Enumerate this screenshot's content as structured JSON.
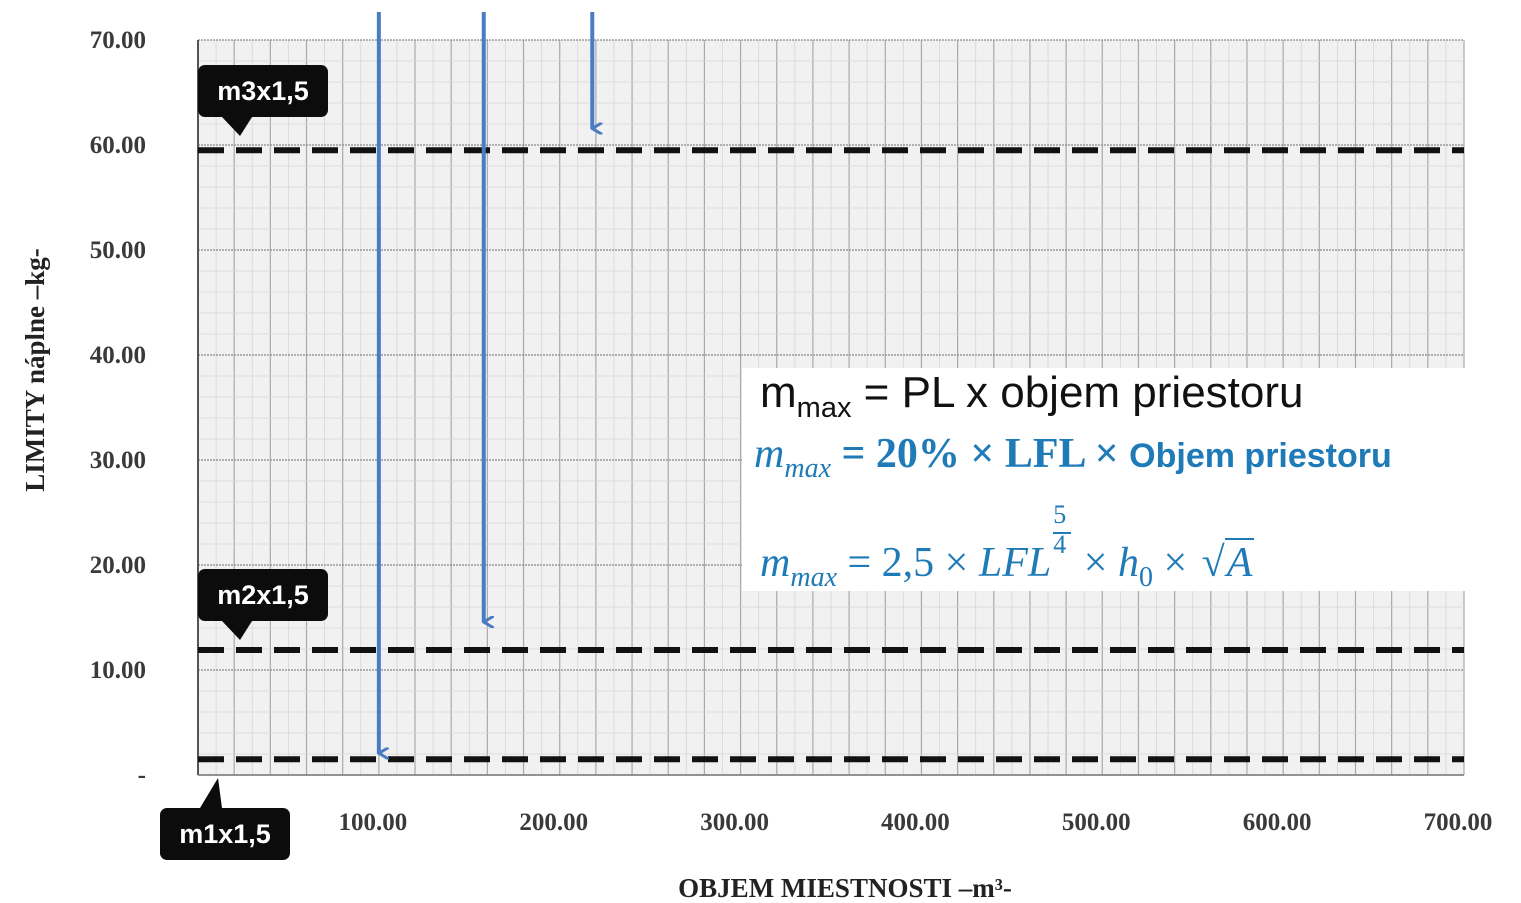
{
  "chart_data": {
    "type": "line",
    "xlabel": "OBJEM MIESTNOSTI –m³-",
    "ylabel": "LIMITY náplne –kg-",
    "xlim": [
      0,
      700
    ],
    "ylim": [
      0,
      70
    ],
    "x_ticks": [
      "100.00",
      "200.00",
      "300.00",
      "400.00",
      "500.00",
      "600.00",
      "700.00"
    ],
    "y_ticks": [
      "-",
      "10.00",
      "20.00",
      "30.00",
      "40.00",
      "50.00",
      "60.00",
      "70.00"
    ],
    "grid": true,
    "series": [
      {
        "name": "m1x1,5",
        "style": "dashed",
        "color": "#111111",
        "x": [
          0,
          700
        ],
        "y": [
          1.5,
          1.5
        ]
      },
      {
        "name": "m2x1,5",
        "style": "dashed",
        "color": "#111111",
        "x": [
          0,
          700
        ],
        "y": [
          11.9,
          11.9
        ]
      },
      {
        "name": "m3x1,5",
        "style": "dashed",
        "color": "#111111",
        "x": [
          0,
          700
        ],
        "y": [
          59.5,
          59.5
        ]
      }
    ],
    "annotations": {
      "arrows": [
        {
          "x": 100,
          "y_from": 72,
          "y_to": 1.5,
          "color": "#4a7cc4"
        },
        {
          "x": 158,
          "y_from": 72,
          "y_to": 14.0,
          "color": "#4a7cc4"
        },
        {
          "x": 218,
          "y_from": 72,
          "y_to": 61.0,
          "color": "#4a7cc4"
        }
      ],
      "callouts": [
        "m1x1,5",
        "m2x1,5",
        "m3x1,5"
      ]
    }
  },
  "formulas": {
    "f1_main": "m",
    "f1_sub": "max",
    "f1_rest": " = PL x objem priestoru",
    "f2_m": "m",
    "f2_sub": "max",
    "f2_eq": " = 20% × LFL  × ",
    "f2_tail": "Objem priestoru",
    "f3_m": "m",
    "f3_sub": "max",
    "f3_eq": " = 2,5 × ",
    "f3_lfl": "LFL",
    "f3_num": "5",
    "f3_den": "4",
    "f3_times1": " × ",
    "f3_h": "h",
    "f3_hsub": "0",
    "f3_times2": " × ",
    "f3_sqrt": "√",
    "f3_a": "A"
  },
  "colors": {
    "arrow": "#4a7cc4",
    "formula": "#1f7ab8",
    "grid_major": "#a9a9a9",
    "grid_minor": "#d6d6d6",
    "plot_bg": "#f1f1f1"
  }
}
